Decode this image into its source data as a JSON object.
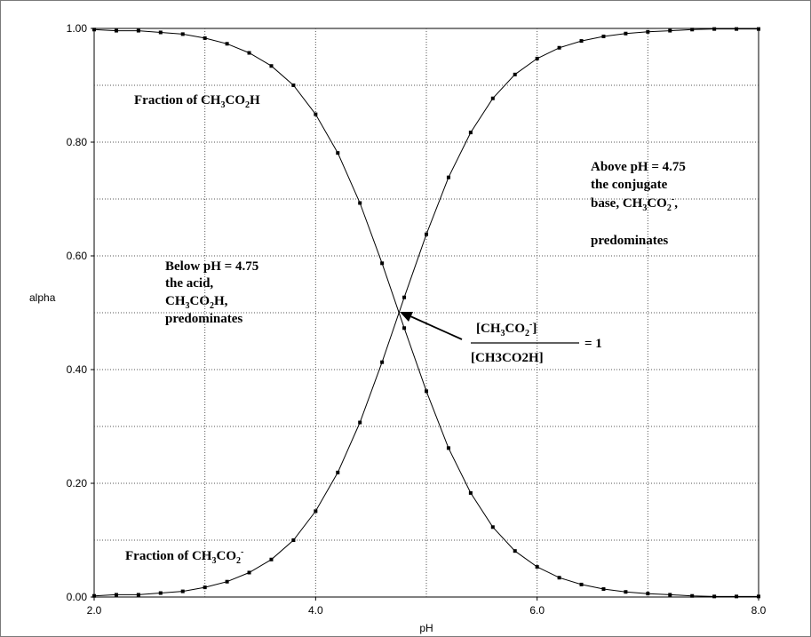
{
  "chart_data": {
    "type": "scatter",
    "xlabel": "pH",
    "ylabel": "alpha",
    "xlim": [
      2.0,
      8.0
    ],
    "ylim": [
      0.0,
      1.0
    ],
    "x_ticks": [
      "2.0",
      "4.0",
      "6.0",
      "8.0"
    ],
    "y_ticks": [
      "0.00",
      "0.20",
      "0.40",
      "0.60",
      "0.80",
      "1.00"
    ],
    "grid": true,
    "x": [
      2.0,
      2.2,
      2.4,
      2.6,
      2.8,
      3.0,
      3.2,
      3.4,
      3.6,
      3.8,
      4.0,
      4.2,
      4.4,
      4.6,
      4.8,
      5.0,
      5.2,
      5.4,
      5.6,
      5.8,
      6.0,
      6.2,
      6.4,
      6.6,
      6.8,
      7.0,
      7.2,
      7.4,
      7.6,
      7.8,
      8.0
    ],
    "series": [
      {
        "values": [
          0.998,
          0.996,
          0.996,
          0.993,
          0.99,
          0.983,
          0.973,
          0.957,
          0.934,
          0.9,
          0.849,
          0.781,
          0.693,
          0.587,
          0.473,
          0.362,
          0.262,
          0.183,
          0.123,
          0.081,
          0.053,
          0.034,
          0.022,
          0.014,
          0.009,
          0.006,
          0.004,
          0.002,
          0.001,
          0.001,
          0.001
        ]
      },
      {
        "values": [
          0.002,
          0.004,
          0.004,
          0.007,
          0.01,
          0.017,
          0.027,
          0.043,
          0.066,
          0.1,
          0.151,
          0.219,
          0.307,
          0.413,
          0.527,
          0.638,
          0.738,
          0.817,
          0.877,
          0.919,
          0.947,
          0.966,
          0.978,
          0.986,
          0.991,
          0.994,
          0.996,
          0.998,
          0.999,
          0.999,
          0.999
        ]
      }
    ],
    "annotations": {
      "acid_fraction": {
        "text": "Fraction of CH",
        "sub1": "3",
        "mid": "CO",
        "sub2": "2",
        "end": "H"
      },
      "base_fraction": {
        "text": "Fraction of CH",
        "sub1": "3",
        "mid": "CO",
        "sub2": "2",
        "sup": "-"
      },
      "below": {
        "line1": "Below pH = 4.75",
        "line2": "the acid,",
        "line3a": "CH",
        "line3b": "3",
        "line3c": "CO",
        "line3d": "2",
        "line3e": "H,",
        "line4": "predominates"
      },
      "above": {
        "line1": "Above pH = 4.75",
        "line2": "the conjugate",
        "line3a": "base, CH",
        "line3b": "3",
        "line3c": "CO",
        "line3d": "2",
        "line3e": "-",
        "line3f": ",",
        "line4": "predominates"
      },
      "ratio": {
        "num_a": "[CH",
        "num_b": "3",
        "num_c": "CO",
        "num_d": "2",
        "num_e": "-",
        "num_f": "]",
        "den": "[CH3CO2H]",
        "eq": "= 1"
      }
    }
  }
}
